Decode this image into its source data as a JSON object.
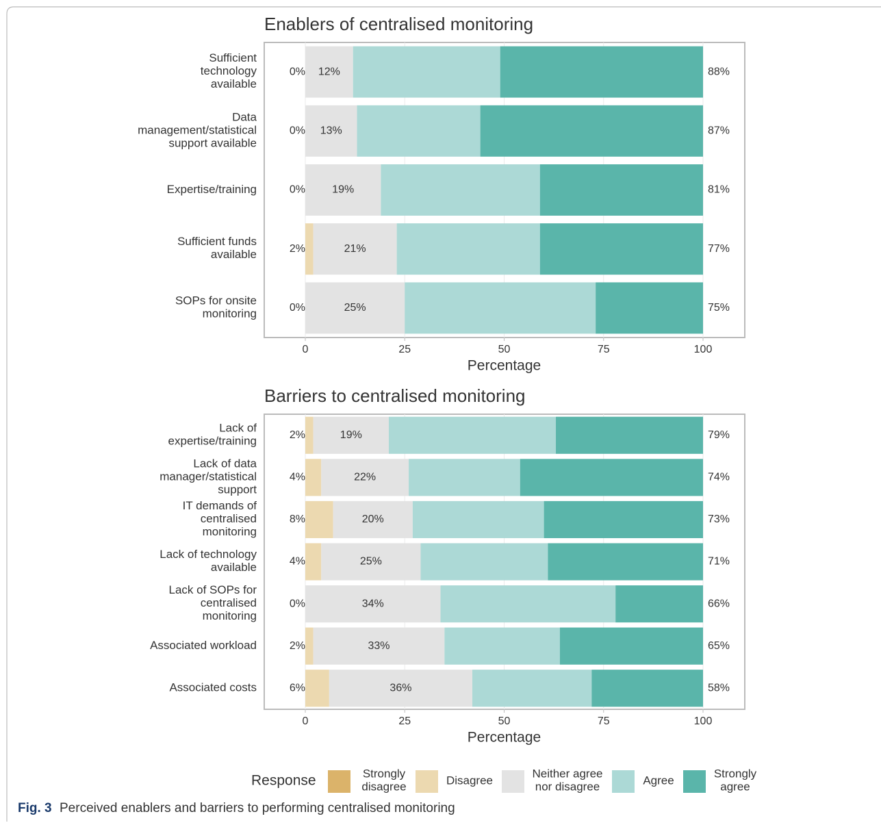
{
  "chart_data": [
    {
      "type": "bar",
      "orientation": "horizontal",
      "stacked": true,
      "title": "Enablers of centralised monitoring",
      "xlabel": "Percentage",
      "categories": [
        "Sufficient\ntechnology\navailable",
        "Data\nmanagement/statistical\nsupport available",
        "Expertise/training",
        "Sufficient funds\navailable",
        "SOPs for onsite\nmonitoring"
      ],
      "series": [
        {
          "name": "Strongly\ndisagree",
          "color": "#dbb36a",
          "values": [
            0,
            0,
            0,
            0,
            0
          ]
        },
        {
          "name": "Disagree",
          "color": "#ecd9b0",
          "values": [
            0,
            0,
            0,
            2,
            0
          ]
        },
        {
          "name": "Neither agree\nnor disagree",
          "color": "#e3e3e3",
          "values": [
            12,
            13,
            19,
            21,
            25
          ],
          "value_labels": [
            "12%",
            "13%",
            "19%",
            "21%",
            "25%"
          ]
        },
        {
          "name": "Agree",
          "color": "#acd9d6",
          "values": [
            37,
            31,
            40,
            36,
            48
          ]
        },
        {
          "name": "Strongly\nagree",
          "color": "#5ab5aa",
          "values": [
            51,
            56,
            41,
            41,
            27
          ]
        }
      ],
      "left_labels": [
        "0%",
        "0%",
        "0%",
        "2%",
        "0%"
      ],
      "right_labels": [
        "88%",
        "87%",
        "81%",
        "77%",
        "75%"
      ],
      "xlim": [
        0,
        100
      ],
      "xticks": [
        0,
        25,
        50,
        75,
        100
      ],
      "grid": true
    },
    {
      "type": "bar",
      "orientation": "horizontal",
      "stacked": true,
      "title": "Barriers to centralised monitoring",
      "xlabel": "Percentage",
      "categories": [
        "Lack of\nexpertise/training",
        "Lack of data\nmanager/statistical\nsupport",
        "IT demands of\ncentralised\nmonitoring",
        "Lack of technology\navailable",
        "Lack of SOPs for\ncentralised\nmonitoring",
        "Associated workload",
        "Associated costs"
      ],
      "series": [
        {
          "name": "Strongly\ndisagree",
          "color": "#dbb36a",
          "values": [
            0,
            0,
            0,
            0,
            0,
            0,
            0
          ]
        },
        {
          "name": "Disagree",
          "color": "#ecd9b0",
          "values": [
            2,
            4,
            7,
            4,
            0,
            2,
            6
          ]
        },
        {
          "name": "Neither agree\nnor disagree",
          "color": "#e3e3e3",
          "values": [
            19,
            22,
            20,
            25,
            34,
            33,
            36
          ],
          "value_labels": [
            "19%",
            "22%",
            "20%",
            "25%",
            "34%",
            "33%",
            "36%"
          ]
        },
        {
          "name": "Agree",
          "color": "#acd9d6",
          "values": [
            42,
            28,
            33,
            32,
            44,
            29,
            30
          ]
        },
        {
          "name": "Strongly\nagree",
          "color": "#5ab5aa",
          "values": [
            37,
            46,
            40,
            39,
            22,
            36,
            28
          ]
        }
      ],
      "left_labels": [
        "2%",
        "4%",
        "8%",
        "4%",
        "0%",
        "2%",
        "6%"
      ],
      "right_labels": [
        "79%",
        "74%",
        "73%",
        "71%",
        "66%",
        "65%",
        "58%"
      ],
      "xlim": [
        0,
        100
      ],
      "xticks": [
        0,
        25,
        50,
        75,
        100
      ],
      "grid": true
    }
  ],
  "legend": {
    "title": "Response"
  },
  "caption": {
    "label": "Fig. 3",
    "text": "Perceived enablers and barriers to performing centralised monitoring"
  }
}
